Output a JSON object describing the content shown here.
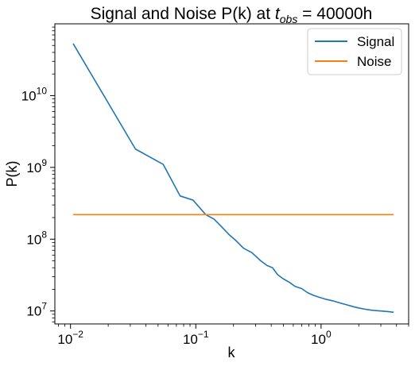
{
  "chart_data": {
    "type": "line",
    "title": {
      "prefix": "Signal and Noise P(k) at ",
      "var": "t",
      "sub": "obs",
      "suffix": " = 40000h"
    },
    "xlabel": "k",
    "ylabel": "P(k)",
    "xscale": "log",
    "yscale": "log",
    "xlim": [
      0.0075,
      5.0
    ],
    "ylim": [
      6600000.0,
      100000000000.0
    ],
    "xticks": [
      {
        "value": 0.01,
        "base": "10",
        "exp": "−2"
      },
      {
        "value": 0.1,
        "base": "10",
        "exp": "−1"
      },
      {
        "value": 1,
        "base": "10",
        "exp": "0"
      }
    ],
    "yticks": [
      {
        "value": 10000000.0,
        "base": "10",
        "exp": "7"
      },
      {
        "value": 100000000.0,
        "base": "10",
        "exp": "8"
      },
      {
        "value": 1000000000.0,
        "base": "10",
        "exp": "9"
      },
      {
        "value": 10000000000.0,
        "base": "10",
        "exp": "10"
      }
    ],
    "grid": false,
    "legend": {
      "placement": "top-right"
    },
    "series": [
      {
        "name": "Signal",
        "color": "#1f77b4",
        "x": [
          0.0105,
          0.033,
          0.055,
          0.075,
          0.095,
          0.12,
          0.14,
          0.16,
          0.185,
          0.21,
          0.24,
          0.28,
          0.33,
          0.37,
          0.41,
          0.45,
          0.5,
          0.56,
          0.62,
          0.7,
          0.78,
          0.87,
          0.97,
          1.1,
          1.25,
          1.4,
          1.6,
          1.8,
          2.0,
          2.3,
          2.6,
          3.0,
          3.4,
          3.8
        ],
        "y": [
          53000000000.0,
          1800000000.0,
          1100000000.0,
          400000000.0,
          350000000.0,
          220000000.0,
          190000000.0,
          150000000.0,
          115000000.0,
          95000000.0,
          75000000.0,
          65000000.0,
          50000000.0,
          43000000.0,
          40000000.0,
          32000000.0,
          28000000.0,
          25000000.0,
          22000000.0,
          20500000.0,
          18000000.0,
          16500000.0,
          15500000.0,
          14500000.0,
          13800000.0,
          13000000.0,
          12200000.0,
          11500000.0,
          11000000.0,
          10500000.0,
          10200000.0,
          10000000.0,
          9800000.0,
          9600000.0
        ]
      },
      {
        "name": "Noise",
        "color": "#ff7f0e",
        "x": [
          0.0105,
          3.8
        ],
        "y": [
          220000000.0,
          220000000.0
        ]
      }
    ]
  }
}
